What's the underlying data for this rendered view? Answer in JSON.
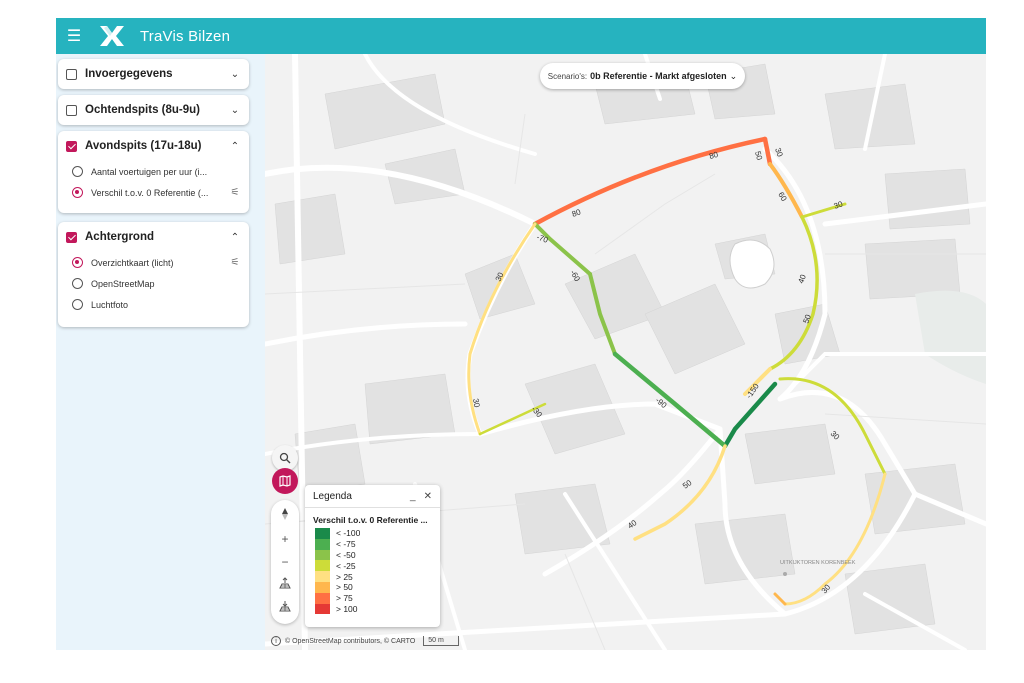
{
  "app": {
    "title": "TraVis Bilzen",
    "menu_icon": "menu-icon",
    "logo_icon": "travis-logo-icon"
  },
  "sidebar": {
    "panels": [
      {
        "title": "Invoergegevens",
        "checked": false,
        "expanded": false,
        "options": []
      },
      {
        "title": "Ochtendspits (8u-9u)",
        "checked": false,
        "expanded": false,
        "options": []
      },
      {
        "title": "Avondspits (17u-18u)",
        "checked": true,
        "expanded": true,
        "options": [
          {
            "label": "Aantal voertuigen per uur (i...",
            "selected": false
          },
          {
            "label": "Verschil t.o.v. 0 Referentie (...",
            "selected": true
          }
        ]
      },
      {
        "title": "Achtergrond",
        "checked": true,
        "expanded": true,
        "options": [
          {
            "label": "Overzichtkaart (licht)",
            "selected": true
          },
          {
            "label": "OpenStreetMap",
            "selected": false
          },
          {
            "label": "Luchtfoto",
            "selected": false
          }
        ]
      }
    ]
  },
  "scenario": {
    "label": "Scenario's:",
    "value": "0b Referentie - Markt afgesloten"
  },
  "legend": {
    "title": "Legenda",
    "subtitle": "Verschil t.o.v. 0 Referentie ...",
    "classes": [
      {
        "label": "< -100",
        "color": "#1a8a4a"
      },
      {
        "label": "< -75",
        "color": "#4caf50"
      },
      {
        "label": "< -50",
        "color": "#8bc34a"
      },
      {
        "label": "< -25",
        "color": "#cddc39"
      },
      {
        "label": "> 25",
        "color": "#ffe082"
      },
      {
        "label": "> 50",
        "color": "#ffb74d"
      },
      {
        "label": "> 75",
        "color": "#ff7043"
      },
      {
        "label": "> 100",
        "color": "#e53935"
      }
    ]
  },
  "map": {
    "place_label": "UITKIJKTOREN KORENBEEK",
    "attribution": "© OpenStreetMap contributors, © CARTO",
    "scale": "50 m",
    "road_labels": [
      "80",
      "80",
      "50",
      "30",
      "60",
      "30",
      "-70",
      "-60",
      "30",
      "40",
      "50",
      "30",
      "-30",
      "-90",
      "-150",
      "50",
      "40",
      "30",
      "30"
    ]
  }
}
